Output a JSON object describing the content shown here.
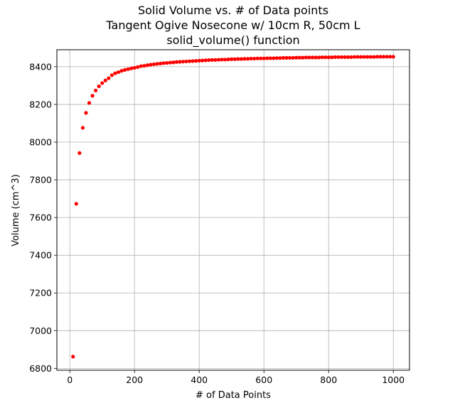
{
  "chart_data": {
    "type": "scatter",
    "title_lines": [
      "Solid Volume vs. # of Data points",
      "Tangent Ogive Nosecone w/ 10cm R, 50cm L",
      "solid_volume() function"
    ],
    "xlabel": "# of Data Points",
    "ylabel": "Volume (cm^3)",
    "xlim": [
      -40,
      1050
    ],
    "ylim": [
      6790,
      8490
    ],
    "xticks": [
      0,
      200,
      400,
      600,
      800,
      1000
    ],
    "yticks": [
      6800,
      7000,
      7200,
      7400,
      7600,
      7800,
      8000,
      8200,
      8400
    ],
    "grid": true,
    "marker_color": "#ff0000",
    "series": [
      {
        "x": [
          10,
          20,
          30,
          40,
          50,
          60,
          70,
          80,
          90,
          100,
          110,
          120,
          130,
          140,
          150,
          160,
          170,
          180,
          190,
          200,
          210,
          220,
          230,
          240,
          250,
          260,
          270,
          280,
          290,
          300,
          310,
          320,
          330,
          340,
          350,
          360,
          370,
          380,
          390,
          400,
          410,
          420,
          430,
          440,
          450,
          460,
          470,
          480,
          490,
          500,
          510,
          520,
          530,
          540,
          550,
          560,
          570,
          580,
          590,
          600,
          610,
          620,
          630,
          640,
          650,
          660,
          670,
          680,
          690,
          700,
          710,
          720,
          730,
          740,
          750,
          760,
          770,
          780,
          790,
          800,
          810,
          820,
          830,
          840,
          850,
          860,
          870,
          880,
          890,
          900,
          910,
          920,
          930,
          940,
          950,
          960,
          970,
          980,
          990,
          1000
        ],
        "y": [
          6862,
          7673,
          7942,
          8076,
          8155,
          8208,
          8246,
          8274,
          8296,
          8313,
          8327,
          8339,
          8355,
          8365,
          8371,
          8378,
          8383,
          8387,
          8391,
          8394,
          8398,
          8403,
          8405,
          8408,
          8411,
          8413,
          8415,
          8417,
          8419,
          8420,
          8422,
          8423,
          8425,
          8426,
          8427,
          8428,
          8429,
          8430,
          8431,
          8432,
          8433,
          8434,
          8435,
          8436,
          8436,
          8437,
          8438,
          8438,
          8439,
          8440,
          8440,
          8441,
          8441,
          8442,
          8442,
          8443,
          8443,
          8444,
          8444,
          8444,
          8445,
          8445,
          8445,
          8446,
          8446,
          8447,
          8447,
          8447,
          8447,
          8448,
          8448,
          8448,
          8449,
          8449,
          8449,
          8449,
          8449,
          8450,
          8450,
          8450,
          8450,
          8451,
          8451,
          8451,
          8451,
          8451,
          8451,
          8452,
          8452,
          8452,
          8452,
          8452,
          8452,
          8452,
          8453,
          8453,
          8453,
          8453,
          8453,
          8453
        ]
      }
    ]
  }
}
